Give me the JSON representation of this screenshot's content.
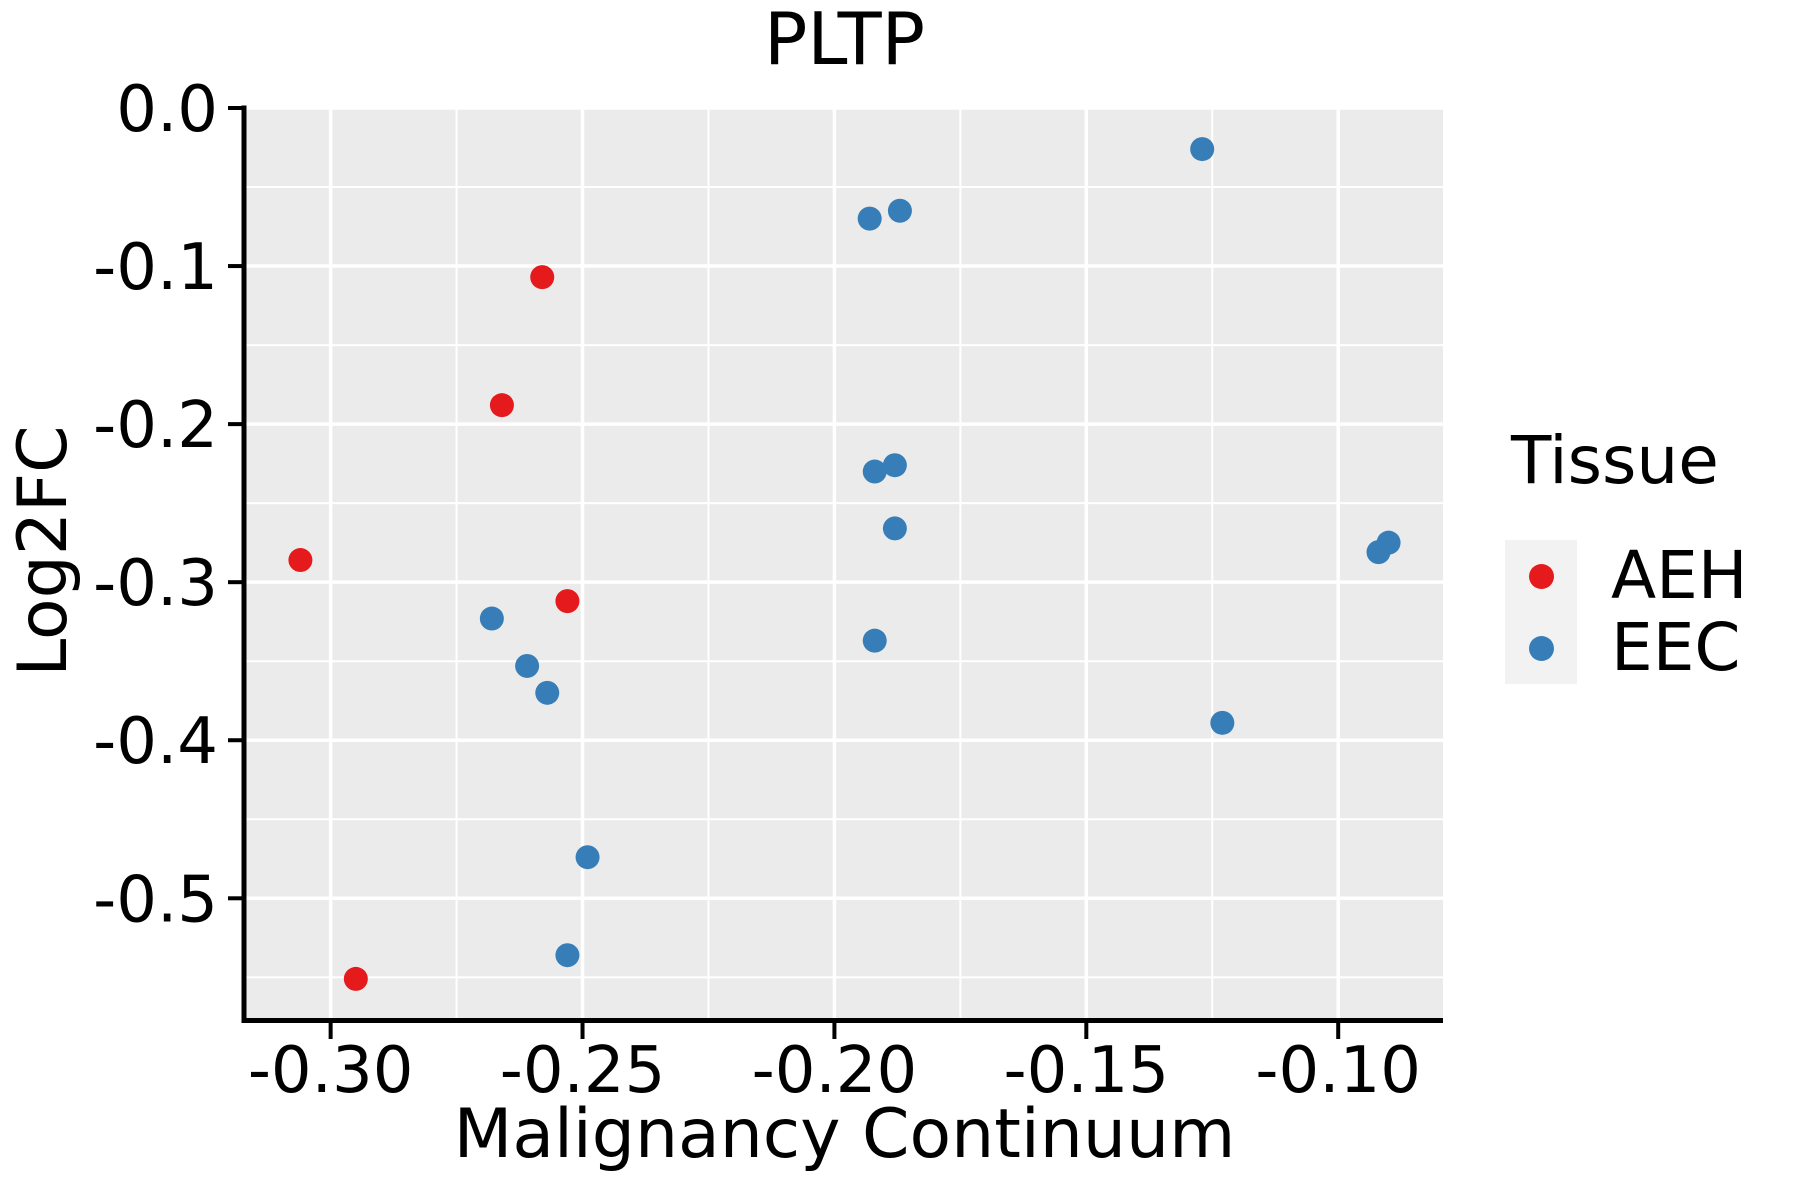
{
  "chart_data": {
    "type": "scatter",
    "title": "PLTP",
    "xlabel": "Malignancy Continuum",
    "ylabel": "Log2FC",
    "xlim": [
      -0.3168,
      -0.0792
    ],
    "ylim": [
      -0.577,
      0.0
    ],
    "x_ticks": {
      "values": [
        -0.3,
        -0.25,
        -0.2,
        -0.15,
        -0.1
      ],
      "labels": [
        "-0.30",
        "-0.25",
        "-0.20",
        "-0.15",
        "-0.10"
      ],
      "minor": [
        -0.275,
        -0.225,
        -0.175,
        -0.125
      ]
    },
    "y_ticks": {
      "values": [
        0.0,
        -0.1,
        -0.2,
        -0.3,
        -0.4,
        -0.5
      ],
      "labels": [
        "0.0",
        "-0.1",
        "-0.2",
        "-0.3",
        "-0.4",
        "-0.5"
      ],
      "minor": [
        -0.05,
        -0.15,
        -0.25,
        -0.35,
        -0.45,
        -0.55
      ]
    },
    "grid": {
      "panel_bg": "#EBEBEB",
      "major_color": "#FFFFFF",
      "minor_color": "#FFFFFF",
      "axis_color": "#000000"
    },
    "marker": {
      "shape": "circle",
      "radius": 12
    },
    "legend": {
      "title": "Tissue",
      "position": "right",
      "key_bg": "#F2F2F2",
      "entries": [
        {
          "label": "AEH",
          "color": "#E41A1C"
        },
        {
          "label": "EEC",
          "color": "#377EB8"
        }
      ]
    },
    "series": [
      {
        "name": "AEH",
        "color": "#E41A1C",
        "points": [
          [
            -0.306,
            -0.286
          ],
          [
            -0.295,
            -0.551
          ],
          [
            -0.266,
            -0.188
          ],
          [
            -0.258,
            -0.107
          ],
          [
            -0.253,
            -0.312
          ]
        ]
      },
      {
        "name": "EEC",
        "color": "#377EB8",
        "points": [
          [
            -0.268,
            -0.323
          ],
          [
            -0.261,
            -0.353
          ],
          [
            -0.257,
            -0.37
          ],
          [
            -0.249,
            -0.474
          ],
          [
            -0.253,
            -0.536
          ],
          [
            -0.193,
            -0.07
          ],
          [
            -0.187,
            -0.065
          ],
          [
            -0.192,
            -0.23
          ],
          [
            -0.188,
            -0.226
          ],
          [
            -0.188,
            -0.266
          ],
          [
            -0.192,
            -0.337
          ],
          [
            -0.127,
            -0.026
          ],
          [
            -0.123,
            -0.389
          ],
          [
            -0.092,
            -0.281
          ],
          [
            -0.09,
            -0.275
          ]
        ]
      }
    ]
  }
}
